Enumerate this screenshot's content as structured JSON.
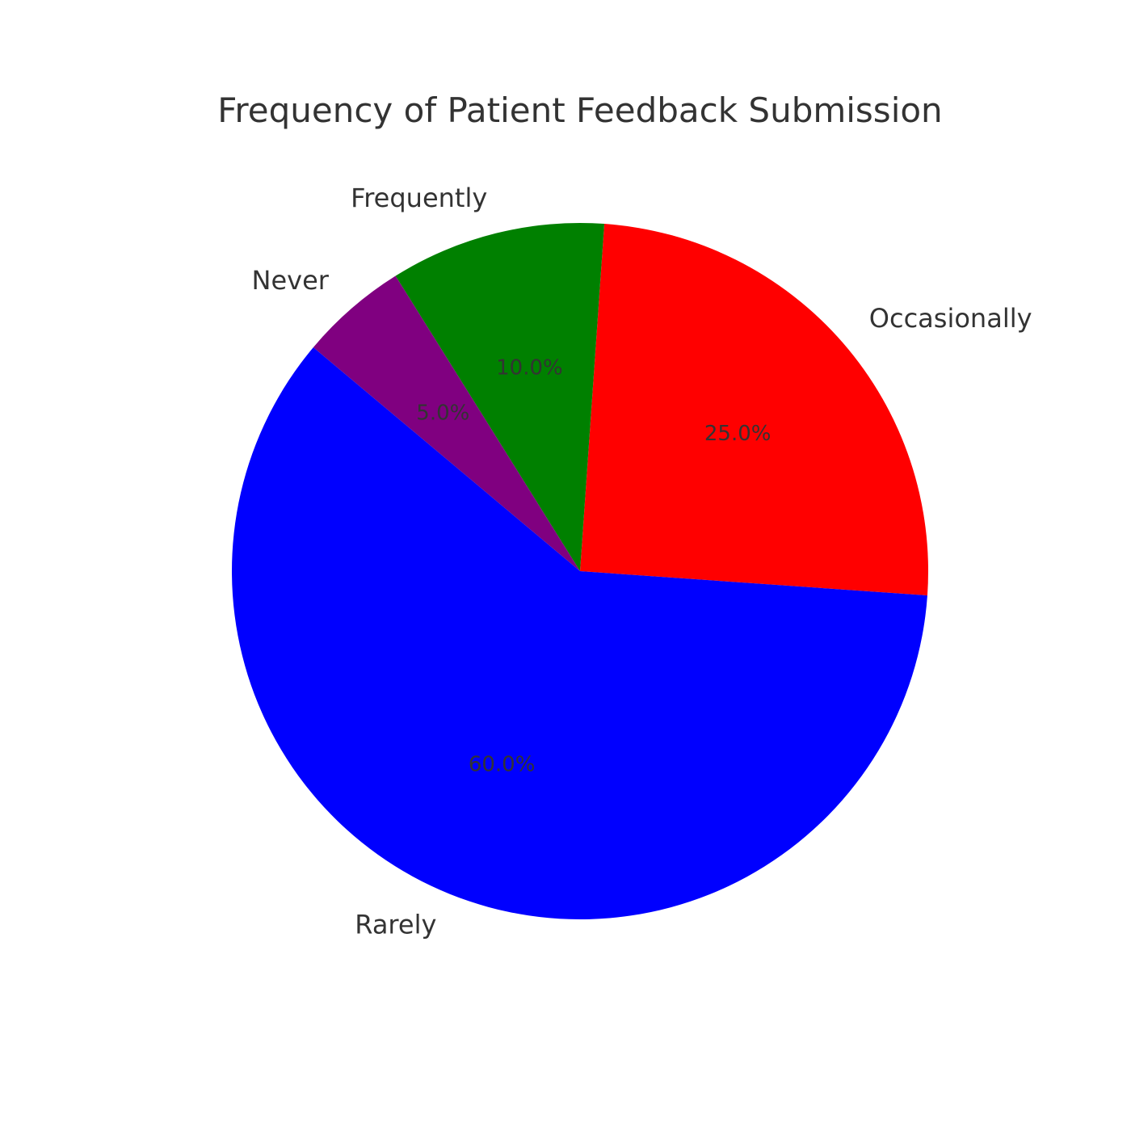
{
  "chart_data": {
    "type": "pie",
    "title": "Frequency of Patient Feedback Submission",
    "slices": [
      {
        "label": "Occasionally",
        "value": 25,
        "pct_label": "25.0%",
        "color": "#ff0000"
      },
      {
        "label": "Frequently",
        "value": 10,
        "pct_label": "10.0%",
        "color": "#008000"
      },
      {
        "label": "Never",
        "value": 5,
        "pct_label": "5.0%",
        "color": "#800080"
      },
      {
        "label": "Rarely",
        "value": 60,
        "pct_label": "60.0%",
        "color": "#0000ff"
      }
    ],
    "legend": "none"
  }
}
